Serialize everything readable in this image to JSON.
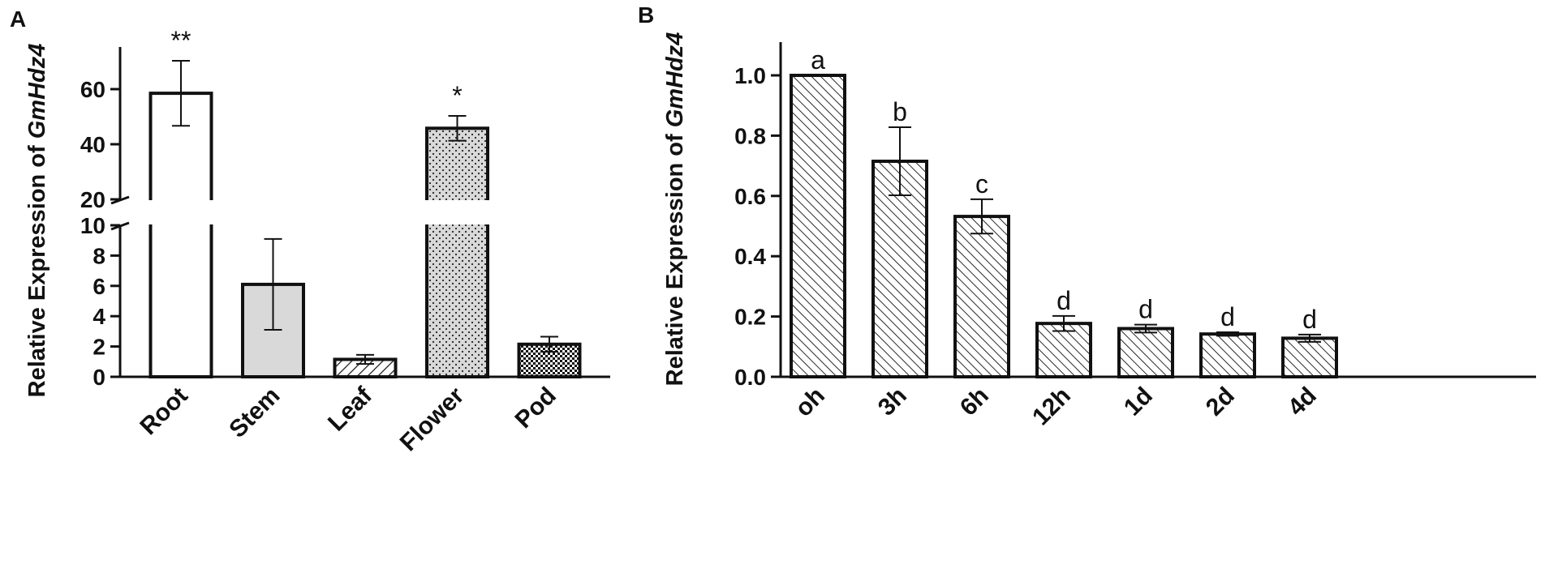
{
  "chart_data": [
    {
      "panel_label": "A",
      "type": "bar",
      "ylabel_prefix": "Relative Expression of ",
      "ylabel_gene": "GmHdz4",
      "categories": [
        "Root",
        "Stem",
        "Leaf",
        "Flower",
        "Pod"
      ],
      "values": [
        58.5,
        6.1,
        1.15,
        45.8,
        2.15
      ],
      "errors": [
        11.8,
        3.0,
        0.3,
        4.5,
        0.5
      ],
      "annotations": [
        "**",
        "",
        "",
        "*",
        ""
      ],
      "fills": [
        "white",
        "lightgray",
        "hatch-diagonal",
        "dotted",
        "checker"
      ],
      "y_axis_broken": true,
      "lower_ylim": [
        0,
        10
      ],
      "lower_ticks": [
        "0",
        "2",
        "4",
        "6",
        "8",
        "10"
      ],
      "upper_ylim": [
        20,
        70
      ],
      "upper_ticks": [
        "20",
        "40",
        "60"
      ]
    },
    {
      "panel_label": "B",
      "type": "bar",
      "ylabel_prefix": "Relative Expression of ",
      "ylabel_gene": "GmHdz4",
      "categories": [
        "oh",
        "3h",
        "6h",
        "12h",
        "1d",
        "2d",
        "4d"
      ],
      "values": [
        1.0,
        0.715,
        0.532,
        0.177,
        0.16,
        0.142,
        0.128
      ],
      "errors": [
        0.0,
        0.113,
        0.057,
        0.025,
        0.013,
        0.006,
        0.012
      ],
      "annotations": [
        "a",
        "b",
        "c",
        "d",
        "d",
        "d",
        "d"
      ],
      "ylim": [
        0,
        1.1
      ],
      "ticks": [
        "0.0",
        "0.2",
        "0.4",
        "0.6",
        "0.8",
        "1.0"
      ],
      "fill": "hatch-diagonal"
    }
  ]
}
